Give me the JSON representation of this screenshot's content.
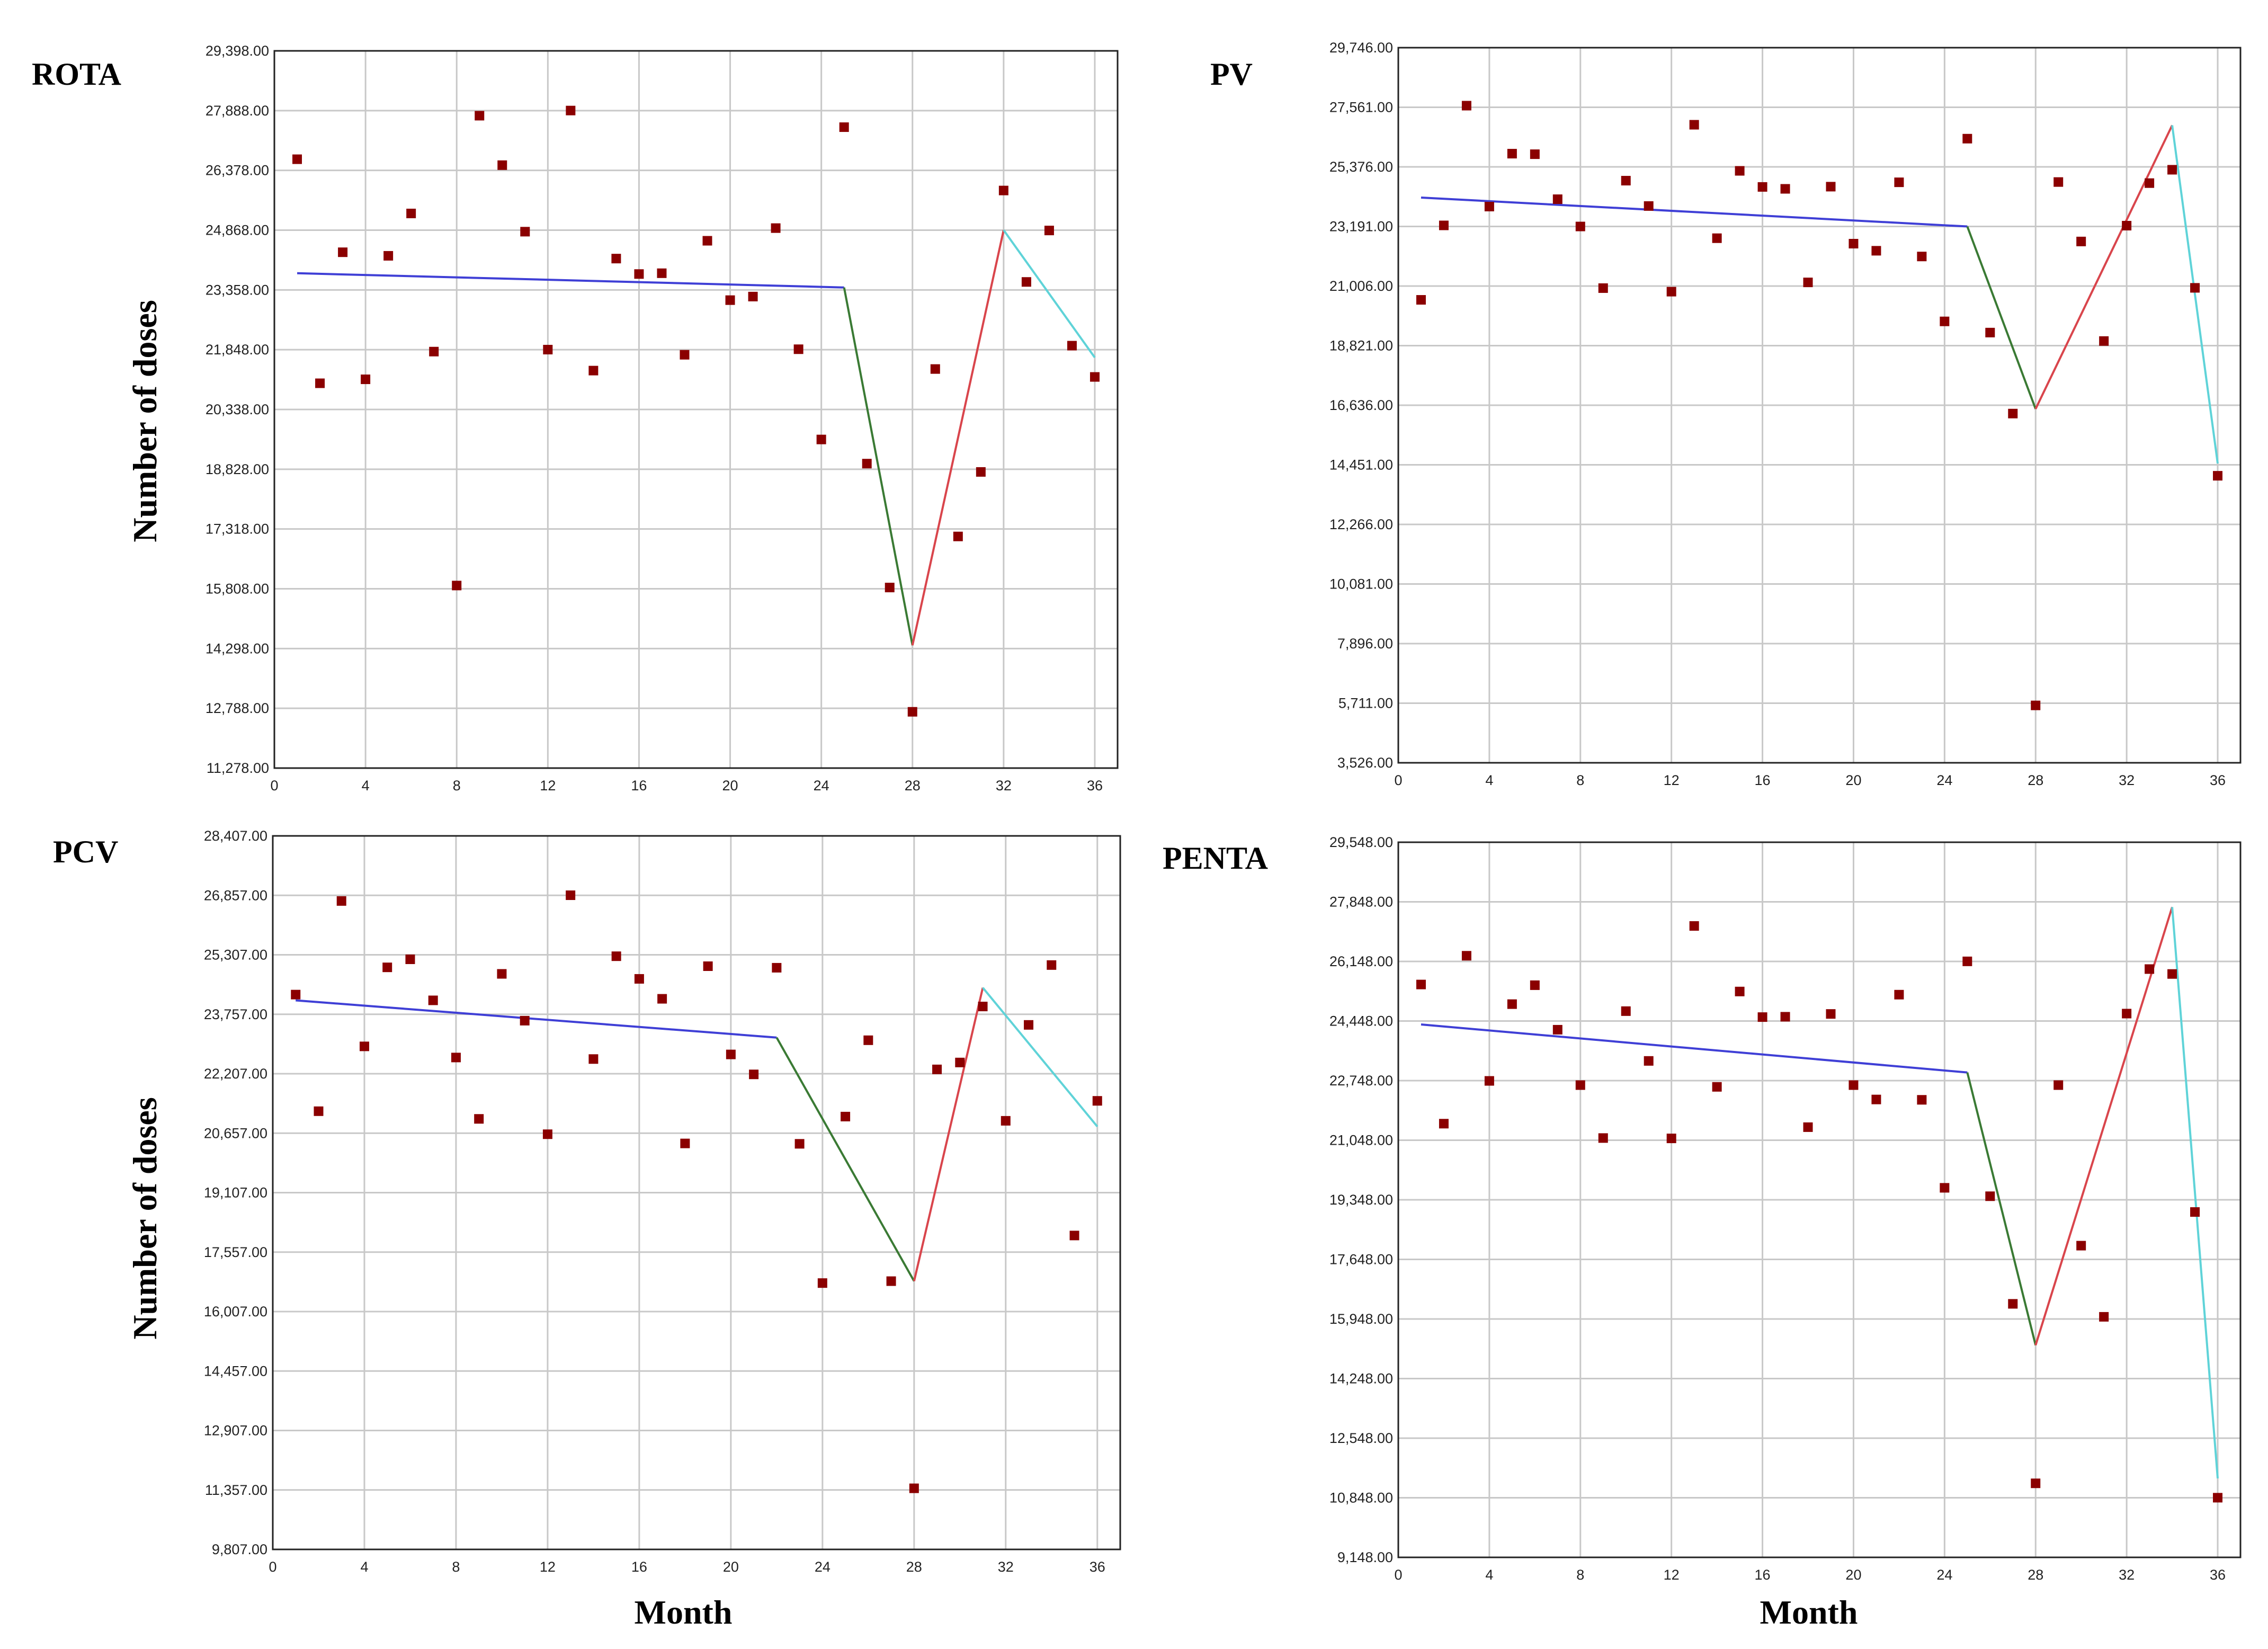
{
  "figure": {
    "ylabel": "Number of doses",
    "xlabel": "Month"
  },
  "colors": {
    "points": "#8b0000",
    "segment_1": "#3f3fd6",
    "segment_2": "#3a7a34",
    "segment_3": "#d9454c",
    "segment_4": "#5fd3d8",
    "grid": "#c8c8c8",
    "frame": "#222222"
  },
  "chart_data": [
    {
      "type": "scatter",
      "title": "ROTA",
      "xlabel": "",
      "ylabel": "Number of doses",
      "xlim": [
        0,
        37
      ],
      "ylim": [
        11278,
        29398
      ],
      "x_ticks": [
        0,
        4,
        8,
        12,
        16,
        20,
        24,
        28,
        32,
        36
      ],
      "x_tick_labels": [
        "0",
        "4",
        "8",
        "12",
        "16",
        "20",
        "24",
        "28",
        "32",
        "36"
      ],
      "y_ticks": [
        11278,
        12788,
        14298,
        15808,
        17318,
        18828,
        20338,
        21848,
        23358,
        24868,
        26378,
        27888,
        29398
      ],
      "y_tick_labels": [
        "11,278.00",
        "12,788.00",
        "14,298.00",
        "15,808.00",
        "17,318.00",
        "18,828.00",
        "20,338.00",
        "21,848.00",
        "23,358.00",
        "24,868.00",
        "26,378.00",
        "27,888.00",
        "29,398.00"
      ],
      "grid": true,
      "x": [
        1,
        2,
        3,
        4,
        5,
        6,
        7,
        8,
        9,
        10,
        11,
        12,
        13,
        14,
        15,
        16,
        17,
        18,
        19,
        20,
        21,
        22,
        23,
        24,
        25,
        26,
        27,
        28,
        29,
        30,
        31,
        32,
        33,
        34,
        35,
        36
      ],
      "y": [
        26660,
        21000,
        24310,
        21100,
        24220,
        25290,
        21800,
        15890,
        27760,
        26510,
        24830,
        21850,
        27890,
        21320,
        24150,
        23760,
        23780,
        21720,
        24600,
        23100,
        23190,
        24920,
        21860,
        19580,
        27470,
        18970,
        15840,
        12700,
        21360,
        17130,
        18760,
        25870,
        23560,
        24860,
        21950,
        21160
      ],
      "series": [
        {
          "name": "segment_1",
          "x": [
            1,
            25
          ],
          "y": [
            23780,
            23420
          ]
        },
        {
          "name": "segment_2",
          "x": [
            25,
            28
          ],
          "y": [
            23420,
            14380
          ]
        },
        {
          "name": "segment_3",
          "x": [
            28,
            32
          ],
          "y": [
            14380,
            24870
          ]
        },
        {
          "name": "segment_4",
          "x": [
            32,
            36
          ],
          "y": [
            24870,
            21650
          ]
        }
      ]
    },
    {
      "type": "scatter",
      "title": "PV",
      "xlabel": "",
      "ylabel": "",
      "xlim": [
        0,
        37
      ],
      "ylim": [
        3526,
        29746
      ],
      "x_ticks": [
        0,
        4,
        8,
        12,
        16,
        20,
        24,
        28,
        32,
        36
      ],
      "x_tick_labels": [
        "0",
        "4",
        "8",
        "12",
        "16",
        "20",
        "24",
        "28",
        "32",
        "36"
      ],
      "y_ticks": [
        3526,
        5711,
        7896,
        10081,
        12266,
        14451,
        16636,
        18821,
        21006,
        23191,
        25376,
        27561,
        29746
      ],
      "y_tick_labels": [
        "3,526.00",
        "5,711.00",
        "7,896.00",
        "10,081.00",
        "12,266.00",
        "14,451.00",
        "16,636.00",
        "18,821.00",
        "21,006.00",
        "23,191.00",
        "25,376.00",
        "27,561.00",
        "29,746.00"
      ],
      "grid": true,
      "x": [
        1,
        2,
        3,
        4,
        5,
        6,
        7,
        8,
        9,
        10,
        11,
        12,
        13,
        14,
        15,
        16,
        17,
        18,
        19,
        20,
        21,
        22,
        23,
        24,
        25,
        26,
        27,
        28,
        29,
        30,
        31,
        32,
        33,
        34,
        35,
        36
      ],
      "y": [
        20500,
        23230,
        27620,
        23920,
        25860,
        25840,
        24190,
        23190,
        20930,
        24870,
        23940,
        20800,
        26920,
        22760,
        25230,
        24640,
        24570,
        21140,
        24650,
        22560,
        22300,
        24810,
        22090,
        19710,
        26410,
        19300,
        16330,
        5630,
        24820,
        22640,
        18990,
        23220,
        24780,
        25270,
        20940,
        14050
      ],
      "series": [
        {
          "name": "segment_1",
          "x": [
            1,
            25
          ],
          "y": [
            24250,
            23190
          ]
        },
        {
          "name": "segment_2",
          "x": [
            25,
            28
          ],
          "y": [
            23190,
            16500
          ]
        },
        {
          "name": "segment_3",
          "x": [
            28,
            34
          ],
          "y": [
            16500,
            26900
          ]
        },
        {
          "name": "segment_4",
          "x": [
            34,
            36
          ],
          "y": [
            26900,
            14500
          ]
        }
      ]
    },
    {
      "type": "scatter",
      "title": "PCV",
      "xlabel": "Month",
      "ylabel": "Number of doses",
      "xlim": [
        0,
        37
      ],
      "ylim": [
        9807,
        28407
      ],
      "x_ticks": [
        0,
        4,
        8,
        12,
        16,
        20,
        24,
        28,
        32,
        36
      ],
      "x_tick_labels": [
        "0",
        "4",
        "8",
        "12",
        "16",
        "20",
        "24",
        "28",
        "32",
        "36"
      ],
      "y_ticks": [
        9807,
        11357,
        12907,
        14457,
        16007,
        17557,
        19107,
        20657,
        22207,
        23757,
        25307,
        26857,
        28407
      ],
      "y_tick_labels": [
        "9,807.00",
        "11,357.00",
        "12,907.00",
        "14,457.00",
        "16,007.00",
        "17,557.00",
        "19,107.00",
        "20,657.00",
        "22,207.00",
        "23,757.00",
        "25,307.00",
        "26,857.00",
        "28,407.00"
      ],
      "grid": true,
      "x": [
        1,
        2,
        3,
        4,
        5,
        6,
        7,
        8,
        9,
        10,
        11,
        12,
        13,
        14,
        15,
        16,
        17,
        18,
        19,
        20,
        21,
        22,
        23,
        24,
        25,
        26,
        27,
        28,
        29,
        30,
        31,
        32,
        33,
        34,
        35,
        36
      ],
      "y": [
        24270,
        21230,
        26710,
        22920,
        24980,
        25190,
        24120,
        22630,
        21030,
        24810,
        23590,
        20630,
        26860,
        22590,
        25270,
        24680,
        24160,
        20390,
        25010,
        22710,
        22190,
        24970,
        20380,
        16750,
        21090,
        23080,
        16800,
        11400,
        22320,
        22500,
        23960,
        20980,
        23480,
        25040,
        17990,
        21500
      ],
      "series": [
        {
          "name": "segment_1",
          "x": [
            1,
            22
          ],
          "y": [
            24120,
            23150
          ]
        },
        {
          "name": "segment_2",
          "x": [
            22,
            28
          ],
          "y": [
            23150,
            16800
          ]
        },
        {
          "name": "segment_3",
          "x": [
            28,
            31
          ],
          "y": [
            16800,
            24450
          ]
        },
        {
          "name": "segment_4",
          "x": [
            31,
            36
          ],
          "y": [
            24450,
            20830
          ]
        }
      ]
    },
    {
      "type": "scatter",
      "title": "PENTA",
      "xlabel": "Month",
      "ylabel": "",
      "xlim": [
        0,
        37
      ],
      "ylim": [
        9148,
        29548
      ],
      "x_ticks": [
        0,
        4,
        8,
        12,
        16,
        20,
        24,
        28,
        32,
        36
      ],
      "x_tick_labels": [
        "0",
        "4",
        "8",
        "12",
        "16",
        "20",
        "24",
        "28",
        "32",
        "36"
      ],
      "y_ticks": [
        9148,
        10848,
        12548,
        14248,
        15948,
        17648,
        19348,
        21048,
        22748,
        24448,
        26148,
        27848,
        29548
      ],
      "y_tick_labels": [
        "9,148.00",
        "10,848.00",
        "12,548.00",
        "14,248.00",
        "15,948.00",
        "17,648.00",
        "19,348.00",
        "21,048.00",
        "22,748.00",
        "24,448.00",
        "26,148.00",
        "27,848.00",
        "29,548.00"
      ],
      "grid": true,
      "x": [
        1,
        2,
        3,
        4,
        5,
        6,
        7,
        8,
        9,
        10,
        11,
        12,
        13,
        14,
        15,
        16,
        17,
        18,
        19,
        20,
        21,
        22,
        23,
        24,
        25,
        26,
        27,
        28,
        29,
        30,
        31,
        32,
        33,
        34,
        35,
        36
      ],
      "y": [
        25490,
        21520,
        26310,
        22740,
        24930,
        25470,
        24200,
        22620,
        21110,
        24730,
        23310,
        21100,
        27160,
        22570,
        25290,
        24560,
        24570,
        21420,
        24650,
        22620,
        22210,
        25200,
        22200,
        19690,
        26150,
        19450,
        16380,
        11260,
        22620,
        18040,
        16010,
        24660,
        25930,
        25790,
        19000,
        10850
      ],
      "series": [
        {
          "name": "segment_1",
          "x": [
            1,
            25
          ],
          "y": [
            24350,
            22980
          ]
        },
        {
          "name": "segment_2",
          "x": [
            25,
            28
          ],
          "y": [
            22980,
            15200
          ]
        },
        {
          "name": "segment_3",
          "x": [
            28,
            34
          ],
          "y": [
            15200,
            27700
          ]
        },
        {
          "name": "segment_4",
          "x": [
            34,
            36
          ],
          "y": [
            27700,
            11400
          ]
        }
      ]
    }
  ]
}
